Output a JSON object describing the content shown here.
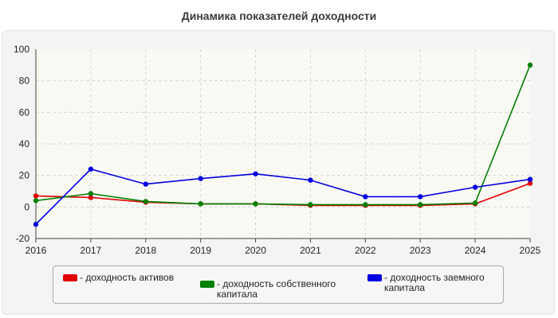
{
  "chart_data": {
    "type": "line",
    "title": "Динамика показателей доходности",
    "xlabel": "",
    "ylabel": "",
    "x": [
      2016,
      2017,
      2018,
      2019,
      2020,
      2021,
      2022,
      2023,
      2024,
      2025
    ],
    "ylim": [
      -20,
      100
    ],
    "yticks": [
      -20,
      0,
      20,
      40,
      60,
      80,
      100
    ],
    "grid": true,
    "legend_position": "bottom",
    "series": [
      {
        "name": "- доходность активов",
        "color": "#e00000",
        "values": [
          7,
          6,
          3,
          2,
          2,
          1,
          1,
          1,
          2,
          15
        ]
      },
      {
        "name": "- доходность собственного капитала",
        "color": "#008000",
        "values": [
          4,
          8.5,
          3.5,
          2,
          2,
          1.5,
          1.5,
          1.5,
          2.5,
          90
        ]
      },
      {
        "name": "- доходность заемного капитала",
        "color": "#0000e0",
        "values": [
          -11,
          24,
          14.5,
          18,
          21,
          17,
          6.5,
          6.5,
          12.5,
          17.5
        ]
      }
    ]
  }
}
